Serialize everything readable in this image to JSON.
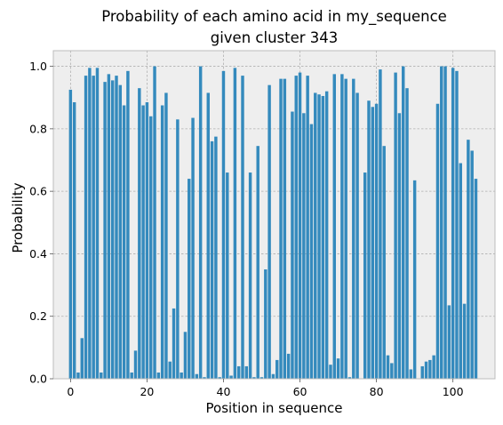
{
  "chart_data": {
    "type": "bar",
    "title": [
      "Probability of each amino acid in my_sequence",
      "given cluster 343"
    ],
    "xlabel": "Position in sequence",
    "ylabel": "Probability",
    "xlim": [
      -4.5,
      111.0
    ],
    "ylim": [
      0,
      1.05
    ],
    "xticks": [
      0,
      20,
      40,
      60,
      80,
      100
    ],
    "yticks": [
      0.0,
      0.2,
      0.4,
      0.6,
      0.8,
      1.0
    ],
    "ytick_labels": [
      "0.0",
      "0.2",
      "0.4",
      "0.6",
      "0.8",
      "1.0"
    ],
    "grid": true,
    "bar_color": "#348abd",
    "background": "#eeeeee",
    "x": [
      0,
      1,
      2,
      3,
      4,
      5,
      6,
      7,
      8,
      9,
      10,
      11,
      12,
      13,
      14,
      15,
      16,
      17,
      18,
      19,
      20,
      21,
      22,
      23,
      24,
      25,
      26,
      27,
      28,
      29,
      30,
      31,
      32,
      33,
      34,
      35,
      36,
      37,
      38,
      39,
      40,
      41,
      42,
      43,
      44,
      45,
      46,
      47,
      48,
      49,
      50,
      51,
      52,
      53,
      54,
      55,
      56,
      57,
      58,
      59,
      60,
      61,
      62,
      63,
      64,
      65,
      66,
      67,
      68,
      69,
      70,
      71,
      72,
      73,
      74,
      75,
      76,
      77,
      78,
      79,
      80,
      81,
      82,
      83,
      84,
      85,
      86,
      87,
      88,
      89,
      90,
      91,
      92,
      93,
      94,
      95,
      96,
      97,
      98,
      99,
      100,
      101,
      102,
      103,
      104,
      105,
      106
    ],
    "values": [
      0.925,
      0.885,
      0.02,
      0.13,
      0.97,
      0.995,
      0.97,
      0.995,
      0.02,
      0.95,
      0.975,
      0.955,
      0.97,
      0.94,
      0.875,
      0.985,
      0.02,
      0.09,
      0.93,
      0.875,
      0.885,
      0.84,
      1.0,
      0.02,
      0.875,
      0.915,
      0.055,
      0.225,
      0.83,
      0.02,
      0.15,
      0.64,
      0.835,
      0.015,
      1.0,
      0.005,
      0.915,
      0.76,
      0.775,
      0.005,
      0.985,
      0.66,
      0.01,
      0.995,
      0.04,
      0.97,
      0.04,
      0.66,
      0.005,
      0.745,
      0.005,
      0.35,
      0.94,
      0.015,
      0.06,
      0.96,
      0.96,
      0.08,
      0.855,
      0.97,
      0.98,
      0.85,
      0.97,
      0.815,
      0.915,
      0.91,
      0.905,
      0.92,
      0.045,
      0.975,
      0.065,
      0.975,
      0.96,
      0.005,
      0.96,
      0.915,
      0.0,
      0.66,
      0.89,
      0.87,
      0.88,
      0.99,
      0.745,
      0.075,
      0.05,
      0.98,
      0.85,
      1.0,
      0.93,
      0.03,
      0.635,
      0.0,
      0.04,
      0.055,
      0.06,
      0.075,
      0.88,
      1.0,
      1.0,
      0.235,
      0.995,
      0.985,
      0.69,
      0.24,
      0.765,
      0.73,
      0.64
    ]
  }
}
